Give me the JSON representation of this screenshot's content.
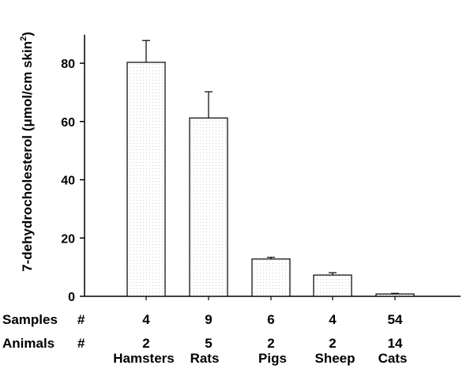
{
  "chart_data": {
    "type": "bar",
    "ylabel_main": "7-dehydrocholesterol (",
    "ylabel_unit": "μmol/cm skin",
    "ylabel_sup": "2",
    "ylabel_close": ")",
    "ylim": [
      0,
      90
    ],
    "yticks": [
      0,
      20,
      40,
      60,
      80
    ],
    "categories": [
      "Hamsters",
      "Rats",
      "Pigs",
      "Sheep",
      "Cats"
    ],
    "values": [
      80.3,
      61.2,
      12.8,
      7.3,
      0.8
    ],
    "errors": [
      7.5,
      9.0,
      0.6,
      0.8,
      0.2
    ],
    "samples_label": "Samples",
    "animals_label": "Animals",
    "hash": "#",
    "samples": [
      "4",
      "9",
      "6",
      "4",
      "54"
    ],
    "animals": [
      "2",
      "5",
      "2",
      "2",
      "14"
    ],
    "colors": {
      "bar_fill": "#ffffff",
      "bar_stipple": "#cfcfcf",
      "stroke": "#000000"
    }
  }
}
